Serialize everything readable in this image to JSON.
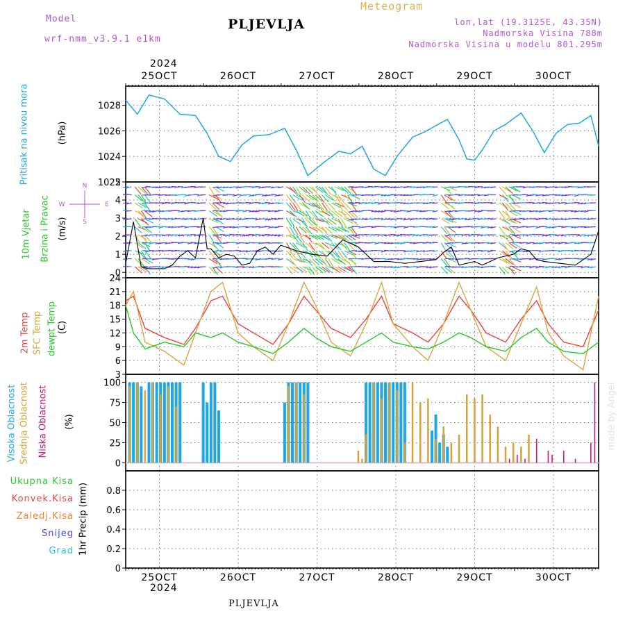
{
  "header": {
    "model_label": "Model",
    "model_name": "wrf-nmm_v3.9.1 e1km",
    "station": "PLJEVLJA",
    "product": "Meteogram",
    "coords": "lon,lat (19.3125E, 43.35N)",
    "altitude": "Nadmorska Visina 788m",
    "model_altitude": "Nadmorska Visina u modelu 801.295m",
    "footer_station": "PLJEVLJA",
    "credit": "made by Angel"
  },
  "colors": {
    "pressure": "#1ea7e4",
    "temp2m": "#e8453c",
    "sfc": "#dfa43c",
    "dewpt": "#22cc22",
    "high_cloud": "#1ea7e4",
    "mid_cloud": "#d4a23a",
    "low_cloud": "#c8167a",
    "label_purple": "#b255d6",
    "label_orange": "#e2b24c"
  },
  "time_axis": {
    "year_label": "2024",
    "days": [
      "25OCT",
      "26OCT",
      "27OCT",
      "28OCT",
      "29OCT",
      "30OCT"
    ]
  },
  "panels": {
    "pressure": {
      "label_a": "Pritisak na nivou mora",
      "label_b": "(hPa)"
    },
    "wind": {
      "label_a": "10m Vjetar",
      "label_b": "Brzina i Pravac",
      "units": "(m/s)",
      "compass_n": "N",
      "compass_s": "S",
      "compass_e": "E",
      "compass_w": "W"
    },
    "temp": {
      "label_a": "2m Temp",
      "label_b": "SFC Temp",
      "label_c": "dewpt Temp",
      "units": "(C)"
    },
    "cloud": {
      "label_a": "Visoka Oblacnost",
      "label_b": "Srednja Oblacnost",
      "label_c": "Niska Oblacnost",
      "units": "(%)"
    },
    "precip": {
      "legend": [
        "Ukupna Kisa",
        "Konvek.Kisa",
        "Zaledj.Kisa",
        "Snijeg",
        "Grad"
      ],
      "legend_colors": [
        "#22cc22",
        "#e8453c",
        "#f07f2a",
        "#4646e0",
        "#27c4c4"
      ],
      "units": "1hr Precip (mm)"
    }
  },
  "chart_data": [
    {
      "type": "line",
      "title": "",
      "ylabel": "Pritisak na nivou mora (hPa)",
      "ylim": [
        1022,
        1029.5
      ],
      "yticks": [
        1022,
        1024,
        1026,
        1028
      ],
      "x_days": [
        0.0,
        0.15,
        0.3,
        0.5,
        0.7,
        0.9,
        1.05,
        1.2,
        1.35,
        1.5,
        1.65,
        1.85,
        2.05,
        2.2,
        2.35,
        2.55,
        2.75,
        2.9,
        3.05,
        3.2,
        3.35,
        3.5,
        3.7,
        3.85,
        4.0,
        4.15,
        4.3,
        4.4,
        4.5,
        4.6,
        4.75,
        4.9,
        5.1,
        5.25,
        5.4,
        5.55,
        5.7,
        5.85,
        6.0,
        6.1
      ],
      "series": [
        {
          "values": [
            1028.4,
            1027.3,
            1028.8,
            1028.5,
            1027.3,
            1027.2,
            1025.8,
            1024.0,
            1023.6,
            1024.9,
            1025.6,
            1025.7,
            1026.2,
            1024.5,
            1022.5,
            1023.5,
            1024.4,
            1024.2,
            1024.8,
            1023.0,
            1022.5,
            1024.0,
            1025.5,
            1025.9,
            1026.4,
            1026.9,
            1025.3,
            1023.8,
            1023.7,
            1024.5,
            1026.0,
            1026.5,
            1027.4,
            1026.0,
            1024.3,
            1025.8,
            1026.5,
            1026.6,
            1027.2,
            1024.8
          ]
        }
      ]
    },
    {
      "type": "line",
      "title": "",
      "ylabel": "10m Vjetar Brzina i Pravac (m/s)",
      "ylim": [
        -0.3,
        5
      ],
      "yticks": [
        0,
        1,
        2,
        3,
        4,
        5
      ],
      "x_days": [
        0.0,
        0.1,
        0.2,
        0.3,
        0.4,
        0.5,
        0.6,
        0.7,
        0.8,
        0.9,
        1.0,
        1.05,
        1.1,
        1.2,
        1.3,
        1.4,
        1.5,
        1.6,
        1.7,
        1.8,
        1.9,
        2.0,
        2.2,
        2.4,
        2.6,
        2.8,
        3.0,
        3.2,
        3.4,
        3.6,
        3.8,
        4.0,
        4.1,
        4.2,
        4.3,
        4.4,
        4.5,
        4.6,
        4.8,
        5.0,
        5.1,
        5.2,
        5.3,
        5.4,
        5.6,
        5.8,
        6.0,
        6.1
      ],
      "series": [
        {
          "name": "speed",
          "values": [
            0.5,
            2.8,
            0.3,
            0.2,
            0.2,
            0.2,
            0.4,
            0.9,
            1.2,
            0.8,
            3.0,
            1.3,
            1.3,
            0.8,
            1.0,
            0.9,
            0.4,
            0.5,
            1.2,
            1.4,
            1.0,
            1.5,
            1.2,
            1.0,
            0.9,
            1.8,
            1.4,
            0.6,
            0.6,
            0.5,
            0.6,
            0.7,
            1.1,
            1.4,
            0.4,
            0.5,
            0.6,
            0.4,
            0.8,
            1.0,
            1.3,
            1.2,
            0.7,
            0.6,
            0.5,
            0.4,
            1.0,
            2.3
          ]
        }
      ]
    },
    {
      "type": "line",
      "title": "",
      "ylabel": "Temp (C)",
      "ylim": [
        3,
        24
      ],
      "yticks": [
        3,
        6,
        9,
        12,
        15,
        18,
        21,
        24
      ],
      "x_days": [
        0.0,
        0.1,
        0.25,
        0.5,
        0.75,
        0.9,
        1.1,
        1.25,
        1.45,
        1.65,
        1.9,
        2.1,
        2.3,
        2.45,
        2.65,
        2.9,
        3.1,
        3.3,
        3.45,
        3.7,
        3.9,
        4.1,
        4.3,
        4.45,
        4.65,
        4.9,
        5.1,
        5.3,
        5.45,
        5.65,
        5.9,
        6.1
      ],
      "series": [
        {
          "name": "2m Temp",
          "values": [
            19,
            20,
            13,
            11,
            9.5,
            13,
            19,
            20,
            14,
            12,
            9.5,
            14,
            20,
            17,
            13,
            11,
            15,
            20,
            14,
            12,
            10,
            14,
            20,
            17,
            12,
            10,
            15,
            19,
            14,
            10,
            9,
            17
          ]
        },
        {
          "name": "SFC Temp",
          "values": [
            18,
            21,
            10,
            8,
            5,
            12,
            21,
            23,
            12,
            9,
            6,
            14,
            23,
            18,
            10,
            7,
            14,
            23,
            14,
            9,
            6,
            14,
            23,
            17,
            9,
            6,
            14,
            22,
            12,
            7,
            4,
            20
          ]
        },
        {
          "name": "dewpt Temp",
          "values": [
            18,
            12,
            8.5,
            10,
            9,
            12,
            11,
            12,
            10,
            9,
            7.5,
            10,
            13,
            11,
            9,
            8,
            10,
            12,
            10,
            9,
            8.5,
            10,
            12,
            11,
            9,
            8,
            11,
            13,
            10,
            8,
            7.5,
            10
          ]
        }
      ]
    },
    {
      "type": "bar",
      "title": "",
      "ylabel": "Oblacnost (%)",
      "ylim": [
        0,
        100
      ],
      "yticks": [
        0,
        25,
        50,
        75,
        100
      ],
      "series": [
        {
          "name": "Visoka Oblacnost",
          "x_days": [
            0.05,
            0.1,
            0.15,
            0.2,
            0.3,
            0.35,
            0.4,
            0.45,
            0.5,
            0.55,
            0.6,
            0.65,
            0.7,
            0.7,
            0.55,
            1.0,
            1.05,
            1.1,
            1.15,
            1.2,
            2.05,
            2.1,
            2.15,
            2.2,
            2.25,
            2.3,
            2.35,
            3.1,
            3.15,
            3.2,
            3.25,
            3.3,
            3.35,
            3.4,
            3.45,
            3.5,
            3.55,
            3.6,
            3.95,
            4.0,
            4.05,
            4.1,
            4.15
          ],
          "values": [
            100,
            100,
            100,
            95,
            100,
            100,
            100,
            100,
            100,
            100,
            100,
            100,
            100,
            100,
            100,
            100,
            75,
            100,
            100,
            65,
            75,
            100,
            100,
            100,
            100,
            100,
            100,
            100,
            100,
            100,
            100,
            100,
            100,
            100,
            100,
            100,
            100,
            100,
            40,
            60,
            25,
            35,
            20
          ]
        },
        {
          "name": "Srednja Oblacnost",
          "x_days": [
            0.05,
            0.15,
            0.25,
            0.35,
            0.45,
            0.55,
            0.65,
            2.1,
            2.2,
            2.3,
            3.0,
            3.05,
            3.1,
            3.2,
            3.3,
            3.4,
            3.5,
            3.6,
            3.7,
            3.8,
            3.9,
            4.0,
            4.1,
            4.2,
            4.3,
            4.4,
            4.5,
            4.6,
            4.7,
            4.8,
            4.9,
            5.0,
            5.1,
            5.2
          ],
          "values": [
            95,
            100,
            90,
            100,
            85,
            95,
            70,
            95,
            100,
            85,
            15,
            5,
            35,
            100,
            80,
            100,
            90,
            25,
            100,
            75,
            80,
            30,
            45,
            25,
            35,
            85,
            80,
            85,
            60,
            45,
            20,
            25,
            20,
            35
          ]
        },
        {
          "name": "Niska Oblacnost",
          "x_days": [
            4.95,
            5.05,
            5.15,
            5.3,
            5.45,
            5.5,
            5.65,
            5.8,
            6.0,
            6.05
          ],
          "values": [
            5,
            10,
            5,
            30,
            15,
            10,
            15,
            5,
            25,
            100
          ]
        }
      ]
    },
    {
      "type": "bar",
      "title": "",
      "ylabel": "1hr Precip (mm)",
      "ylim": [
        0,
        1.0
      ],
      "yticks": [
        0,
        0.2,
        0.4,
        0.6,
        0.8
      ],
      "series": [
        {
          "name": "Ukupna Kisa",
          "values": []
        }
      ]
    }
  ]
}
